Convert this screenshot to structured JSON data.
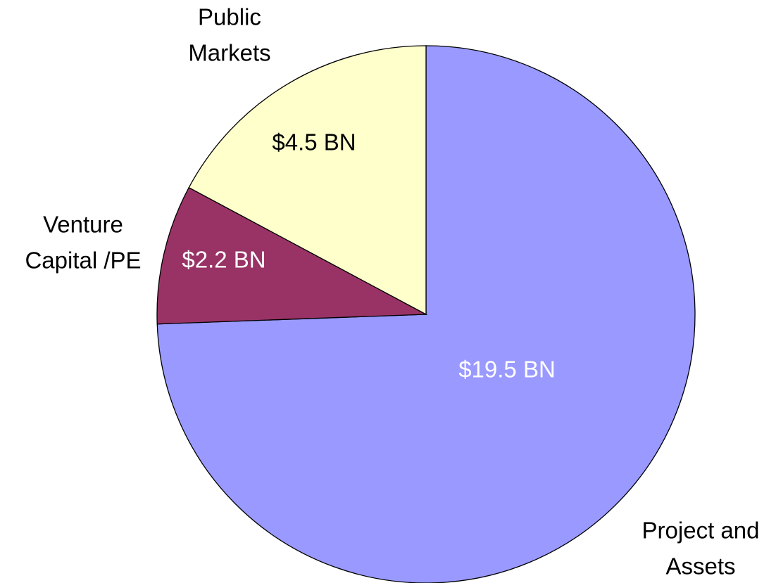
{
  "chart_data": {
    "type": "pie",
    "categories": [
      [
        "Project and",
        "Assets"
      ],
      [
        "Venture",
        "Capital /PE"
      ],
      [
        "Public",
        "Markets"
      ]
    ],
    "values": [
      19.5,
      2.2,
      4.5
    ],
    "value_labels": [
      "$19.5 BN",
      "$2.2 BN",
      "$4.5 BN"
    ],
    "colors": [
      "#9999ff",
      "#993366",
      "#ffffcc"
    ],
    "value_label_colors": [
      "#ffffff",
      "#ffffff",
      "#000000"
    ]
  }
}
